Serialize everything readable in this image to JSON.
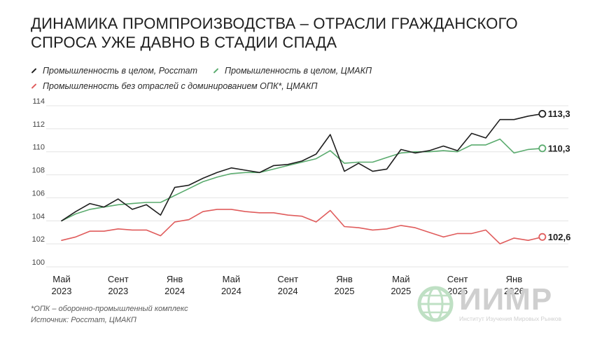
{
  "title_lines": [
    "ДИНАМИКА ПРОМПРОИЗВОДСТВА – ОТРАСЛИ ГРАЖДАНСКОГО",
    "СПРОСА УЖЕ ДАВНО В СТАДИИ СПАДА"
  ],
  "legend": [
    {
      "label": "Промышленность в целом, Росстат",
      "color": "#1e1e1e"
    },
    {
      "label": "Промышленность в целом, ЦМАКП",
      "color": "#5aab6e"
    },
    {
      "label": "Промышленность без отраслей с доминированием ОПК*, ЦМАКП",
      "color": "#e05c5c"
    }
  ],
  "footnote": {
    "line1": "*ОПК – оборонно-промышленный комплекс",
    "line2": "Источник: Росстат, ЦМАКП"
  },
  "logo": {
    "text": "ИИМР",
    "subtitle": "Институт Изучения Мировых Рынков"
  },
  "chart_data": {
    "type": "line",
    "x": [
      "2023-05",
      "2023-06",
      "2023-07",
      "2023-08",
      "2023-09",
      "2023-10",
      "2023-11",
      "2023-12",
      "2024-01",
      "2024-02",
      "2024-03",
      "2024-04",
      "2024-05",
      "2024-06",
      "2024-07",
      "2024-08",
      "2024-09",
      "2024-10",
      "2024-11",
      "2024-12",
      "2025-01",
      "2025-02",
      "2025-03",
      "2025-04",
      "2025-05",
      "2025-06",
      "2025-07",
      "2025-08",
      "2025-09",
      "2025-10",
      "2025-11",
      "2025-12",
      "2026-01",
      "2026-02",
      "2026-03"
    ],
    "x_tick_labels": [
      {
        "x": "2023-05",
        "line1": "Май",
        "line2": "2023"
      },
      {
        "x": "2023-09",
        "line1": "Сент",
        "line2": "2023"
      },
      {
        "x": "2024-01",
        "line1": "Янв",
        "line2": "2024"
      },
      {
        "x": "2024-05",
        "line1": "Май",
        "line2": "2024"
      },
      {
        "x": "2024-09",
        "line1": "Сент",
        "line2": "2024"
      },
      {
        "x": "2025-01",
        "line1": "Янв",
        "line2": "2025"
      },
      {
        "x": "2025-05",
        "line1": "Май",
        "line2": "2025"
      },
      {
        "x": "2025-09",
        "line1": "Сент",
        "line2": "2025"
      },
      {
        "x": "2026-01",
        "line1": "Янв",
        "line2": "2026"
      }
    ],
    "y_ticks": [
      100,
      102,
      104,
      106,
      108,
      110,
      112,
      114
    ],
    "ylim": [
      100,
      114
    ],
    "grid": "horizontal",
    "series": [
      {
        "name": "Промышленность в целом, Росстат",
        "color": "#1e1e1e",
        "values": [
          104.0,
          104.8,
          105.5,
          105.2,
          105.9,
          105.0,
          105.4,
          104.5,
          106.9,
          107.1,
          107.7,
          108.2,
          108.6,
          108.4,
          108.2,
          108.8,
          108.9,
          109.2,
          109.8,
          111.5,
          108.3,
          109.0,
          108.3,
          108.5,
          110.2,
          109.9,
          110.1,
          110.5,
          110.1,
          111.6,
          111.2,
          112.8,
          112.8,
          113.1,
          113.3
        ],
        "end_label": "113,3"
      },
      {
        "name": "Промышленность в целом, ЦМАКП",
        "color": "#5aab6e",
        "values": [
          104.0,
          104.6,
          105.0,
          105.2,
          105.4,
          105.5,
          105.6,
          105.6,
          106.2,
          106.8,
          107.4,
          107.8,
          108.1,
          108.2,
          108.2,
          108.5,
          108.8,
          109.1,
          109.4,
          110.1,
          109.0,
          109.1,
          109.1,
          109.5,
          109.9,
          110.0,
          110.0,
          110.1,
          110.0,
          110.6,
          110.6,
          111.1,
          109.9,
          110.2,
          110.3
        ],
        "end_label": "110,3"
      },
      {
        "name": "Промышленность без отраслей с доминированием ОПК*, ЦМАКП",
        "color": "#e05c5c",
        "values": [
          102.3,
          102.6,
          103.1,
          103.1,
          103.3,
          103.2,
          103.2,
          102.7,
          103.9,
          104.1,
          104.8,
          105.0,
          105.0,
          104.8,
          104.7,
          104.7,
          104.5,
          104.4,
          103.9,
          104.9,
          103.5,
          103.4,
          103.2,
          103.3,
          103.6,
          103.4,
          103.0,
          102.6,
          102.9,
          102.9,
          103.2,
          102.0,
          102.5,
          102.3,
          102.6
        ],
        "end_label": "102,6"
      }
    ]
  }
}
